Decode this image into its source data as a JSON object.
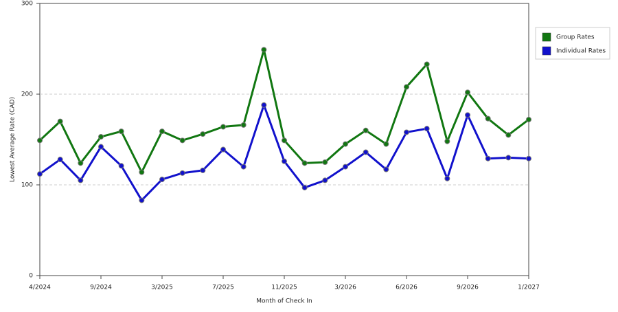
{
  "chart_data": {
    "type": "line",
    "x_label": "Month of Check In",
    "y_label": "Lowest Average Rate (CAD)",
    "categories": [
      "4/2024",
      null,
      null,
      "9/2024",
      null,
      null,
      "3/2025",
      null,
      null,
      "7/2025",
      null,
      null,
      "11/2025",
      null,
      null,
      "3/2026",
      null,
      null,
      "6/2026",
      null,
      null,
      "9/2026",
      null,
      null,
      "1/2027"
    ],
    "series": [
      {
        "name": "Group Rates",
        "color": "#117711",
        "values": [
          149,
          170,
          124,
          153,
          159,
          114,
          159,
          149,
          156,
          164,
          166,
          249,
          149,
          124,
          125,
          145,
          160,
          145,
          208,
          233,
          148,
          202,
          173,
          155,
          172
        ]
      },
      {
        "name": "Individual Rates",
        "color": "#1111cc",
        "values": [
          112,
          128,
          105,
          142,
          121,
          83,
          106,
          113,
          116,
          139,
          120,
          188,
          126,
          97,
          105,
          120,
          136,
          117,
          158,
          162,
          107,
          177,
          129,
          130,
          129
        ]
      }
    ],
    "ylim": [
      0,
      300
    ],
    "yticks": [
      0,
      100,
      200,
      300
    ],
    "grid": true,
    "legend": "right"
  }
}
